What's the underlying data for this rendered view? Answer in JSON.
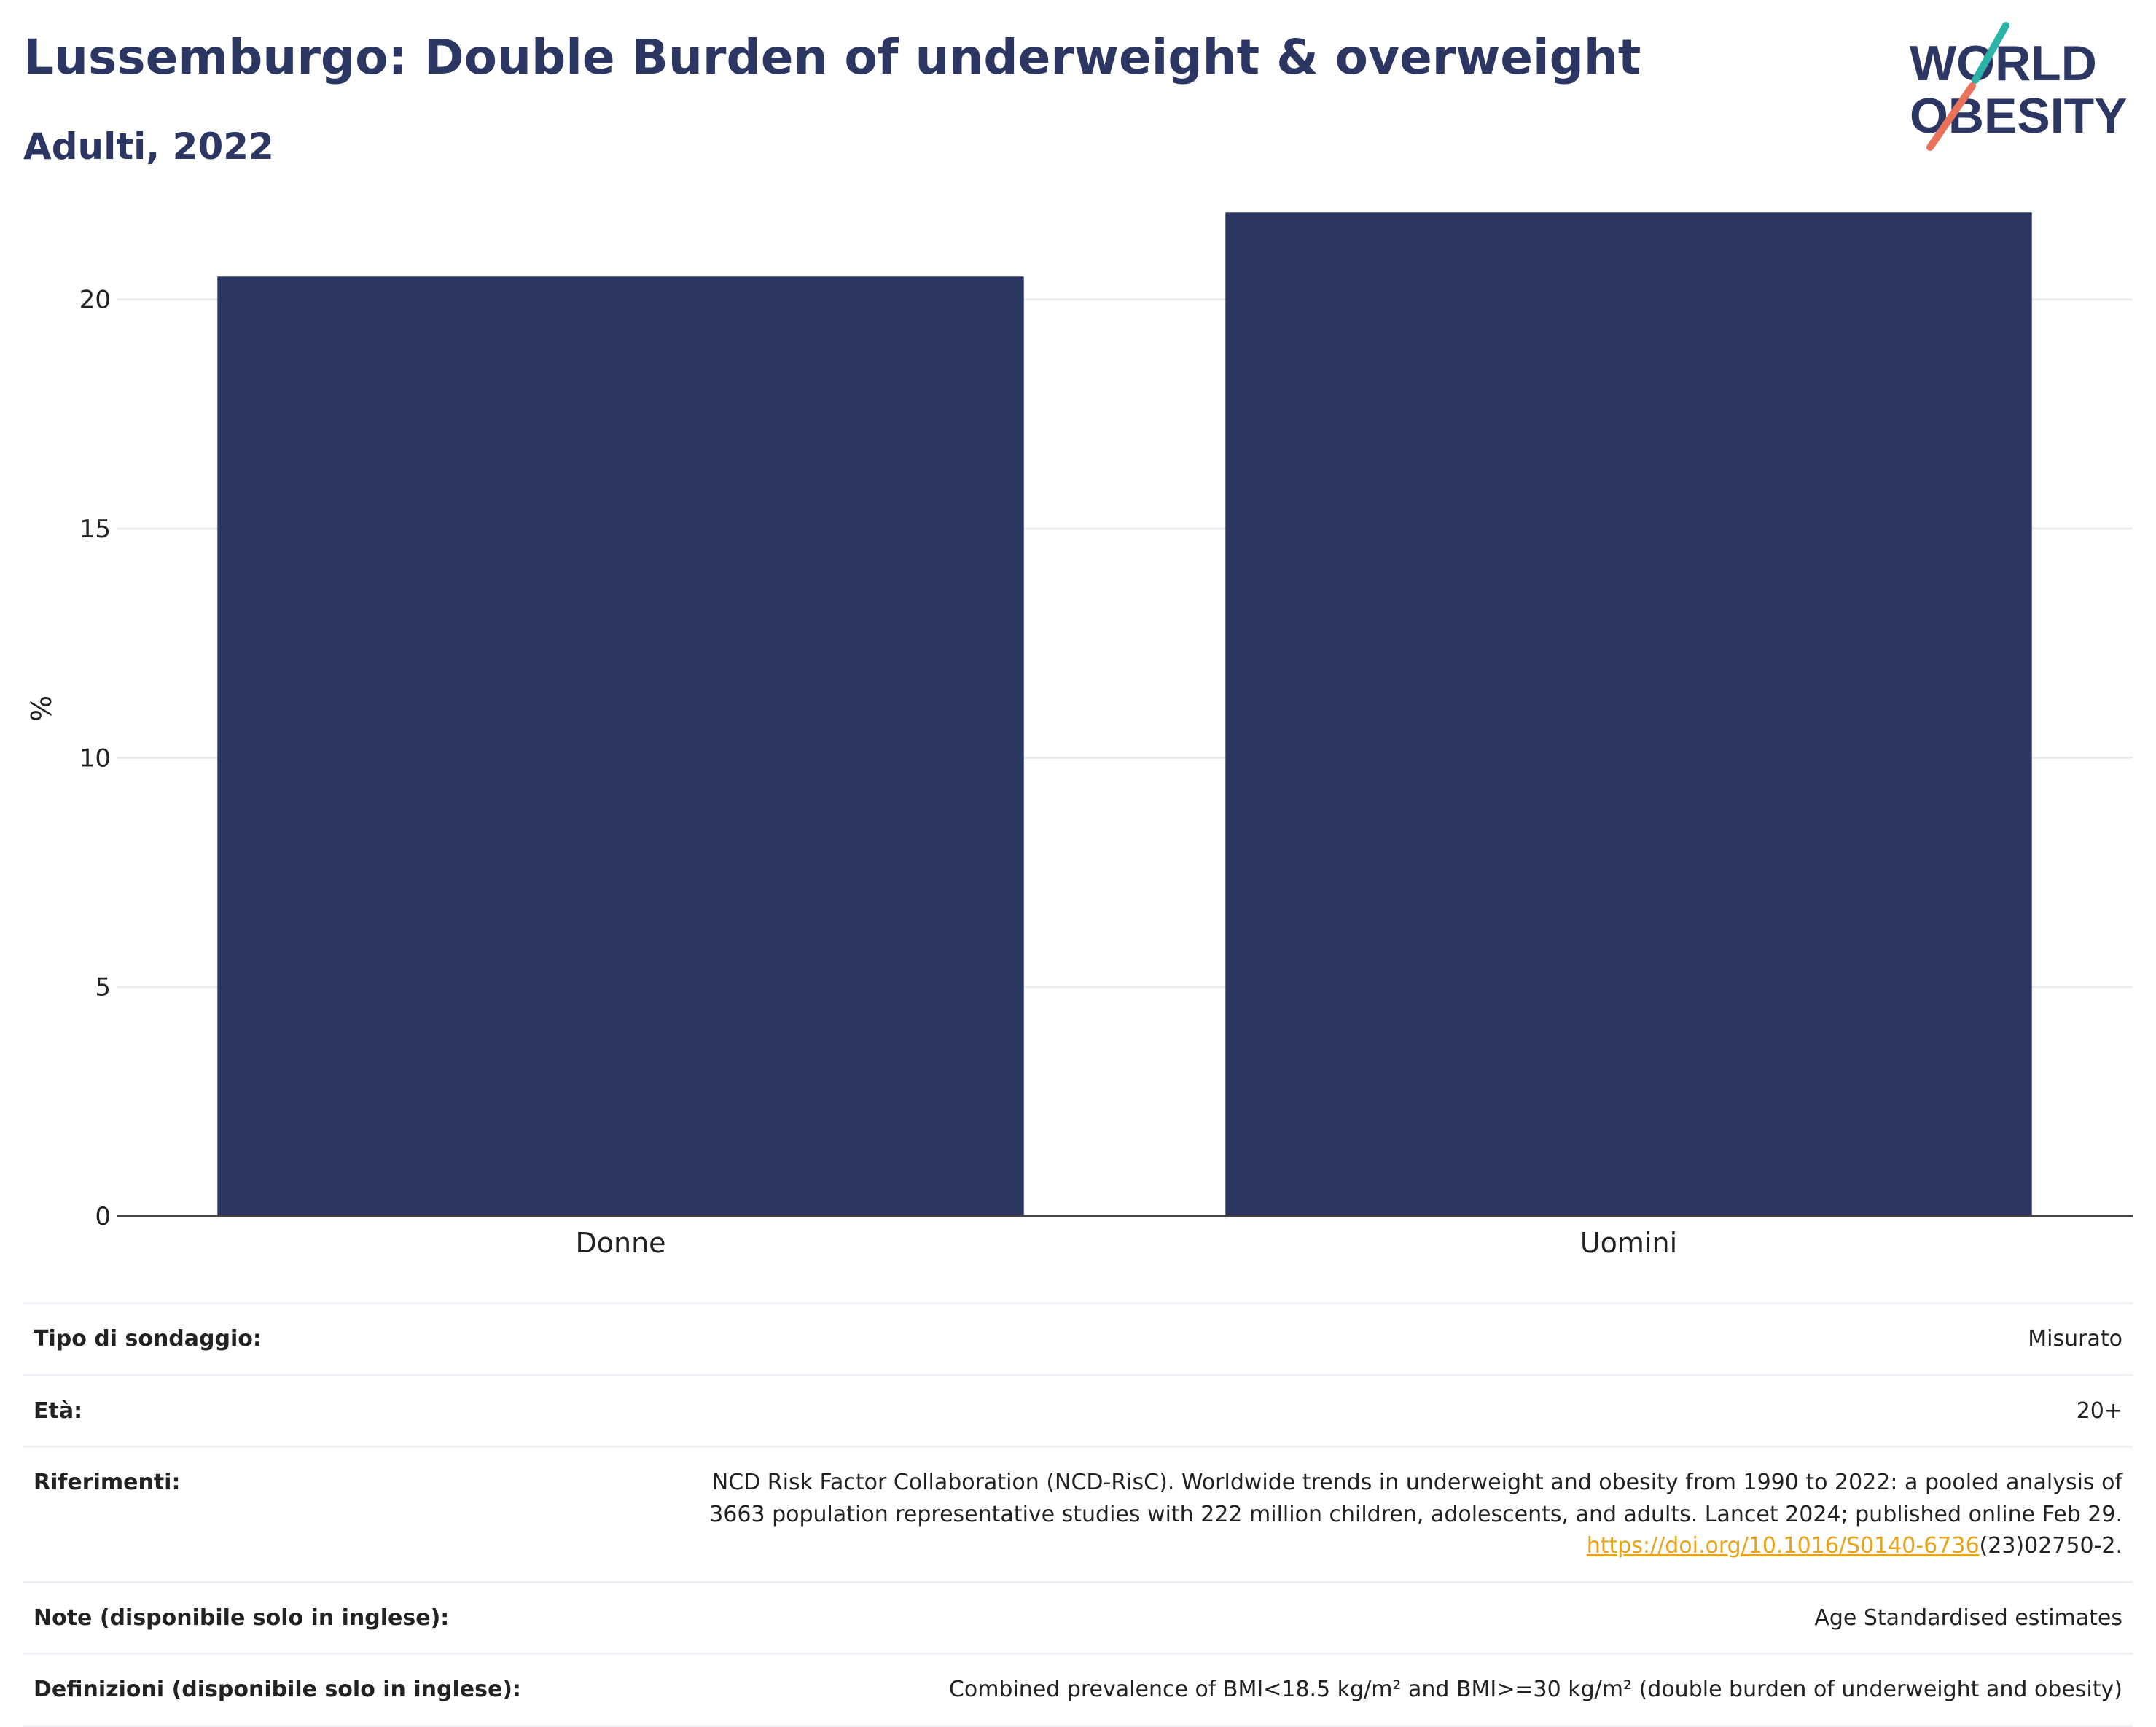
{
  "header": {
    "title": "Lussemburgo: Double Burden of underweight & overweight",
    "subtitle": "Adulti, 2022"
  },
  "logo": {
    "line1": "WORLD",
    "line2": "OBESITY",
    "colors": {
      "text": "#2b3663",
      "teal": "#2bb3a8",
      "coral": "#e8735a"
    }
  },
  "chart_data": {
    "type": "bar",
    "categories": [
      "Donne",
      "Uomini"
    ],
    "values": [
      20.5,
      21.9
    ],
    "ylabel": "%",
    "ylim": [
      0,
      22
    ],
    "yticks": [
      0,
      5,
      10,
      15,
      20
    ],
    "grid": true,
    "bar_color": "#2b3663"
  },
  "info": {
    "survey_type": {
      "label": "Tipo di sondaggio:",
      "value": "Misurato"
    },
    "age": {
      "label": "Età:",
      "value": "20+"
    },
    "references": {
      "label": "Riferimenti:",
      "line1": "NCD Risk Factor Collaboration (NCD-RisC). Worldwide trends in underweight and obesity from 1990 to 2022: a pooled analysis of",
      "line2": "3663 population representative studies with 222 million children, adolescents, and adults. Lancet 2024; published online Feb 29.",
      "link": "https://doi.org/10.1016/S0140-6736",
      "link_suffix": "(23)02750-2."
    },
    "notes": {
      "label": "Note (disponibile solo in inglese):",
      "value": "Age Standardised estimates"
    },
    "definitions": {
      "label": "Definizioni (disponibile solo in inglese):",
      "value": "Combined prevalence of BMI<18.5 kg/m² and BMI>=30 kg/m² (double burden of underweight and obesity)"
    }
  }
}
